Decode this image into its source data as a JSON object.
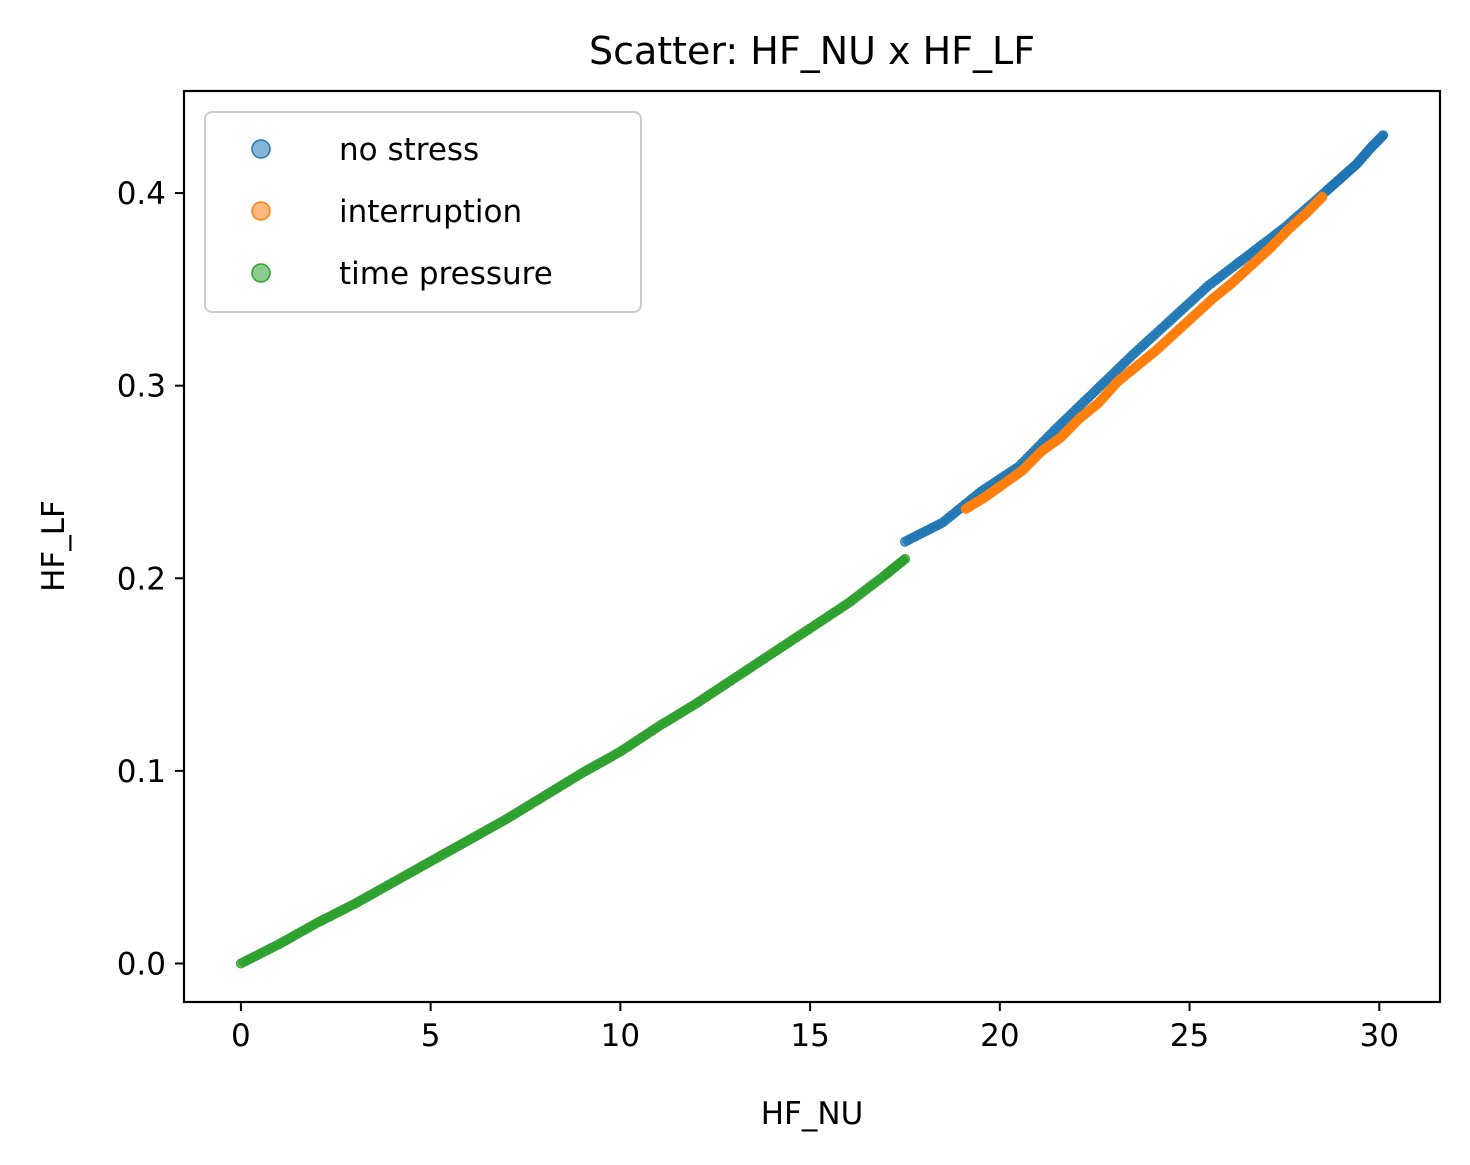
{
  "chart_data": {
    "type": "scatter",
    "title": "Scatter: HF_NU x HF_LF",
    "xlabel": "HF_NU",
    "ylabel": "HF_LF",
    "xlim": [
      -1.5,
      31.6
    ],
    "ylim": [
      -0.02,
      0.453
    ],
    "xticks": [
      0,
      5,
      10,
      15,
      20,
      25,
      30
    ],
    "xtick_labels": [
      "0",
      "5",
      "10",
      "15",
      "20",
      "25",
      "30"
    ],
    "yticks": [
      0.0,
      0.1,
      0.2,
      0.3,
      0.4
    ],
    "ytick_labels": [
      "0.0",
      "0.1",
      "0.2",
      "0.3",
      "0.4"
    ],
    "grid": false,
    "legend_position": "upper-left",
    "curve_relation": "approximately HF_LF = 0.01*HF_NU + 0.000145*HF_NU^2",
    "series": [
      {
        "name": "no stress",
        "color": "#1f77b4",
        "x_range": [
          17.5,
          30.1
        ],
        "points": [
          [
            17.5,
            0.219
          ],
          [
            18.5,
            0.229
          ],
          [
            19.5,
            0.245
          ],
          [
            20.5,
            0.258
          ],
          [
            21.5,
            0.278
          ],
          [
            22.5,
            0.297
          ],
          [
            23.5,
            0.316
          ],
          [
            24.5,
            0.334
          ],
          [
            25.5,
            0.352
          ],
          [
            26.5,
            0.367
          ],
          [
            27.5,
            0.382
          ],
          [
            28.6,
            0.401
          ],
          [
            29.0,
            0.408
          ],
          [
            29.4,
            0.415
          ],
          [
            29.8,
            0.424
          ],
          [
            30.1,
            0.43
          ]
        ]
      },
      {
        "name": "interruption",
        "color": "#ff7f0e",
        "x_range": [
          19.1,
          28.5
        ],
        "points": [
          [
            19.1,
            0.236
          ],
          [
            19.6,
            0.242
          ],
          [
            20.1,
            0.249
          ],
          [
            20.6,
            0.256
          ],
          [
            21.1,
            0.266
          ],
          [
            21.6,
            0.273
          ],
          [
            22.1,
            0.283
          ],
          [
            22.6,
            0.291
          ],
          [
            23.1,
            0.302
          ],
          [
            23.6,
            0.31
          ],
          [
            24.1,
            0.318
          ],
          [
            24.6,
            0.327
          ],
          [
            25.1,
            0.336
          ],
          [
            25.6,
            0.345
          ],
          [
            26.1,
            0.353
          ],
          [
            26.6,
            0.362
          ],
          [
            27.1,
            0.371
          ],
          [
            27.6,
            0.381
          ],
          [
            28.1,
            0.39
          ],
          [
            28.5,
            0.398
          ]
        ]
      },
      {
        "name": "time pressure",
        "color": "#2ca02c",
        "x_range": [
          0,
          17.5
        ],
        "points": [
          [
            0,
            0
          ],
          [
            1,
            0.01
          ],
          [
            2,
            0.021
          ],
          [
            3,
            0.031
          ],
          [
            4,
            0.042
          ],
          [
            5,
            0.053
          ],
          [
            6,
            0.064
          ],
          [
            7,
            0.075
          ],
          [
            8,
            0.087
          ],
          [
            9,
            0.099
          ],
          [
            10,
            0.11
          ],
          [
            11,
            0.123
          ],
          [
            12,
            0.135
          ],
          [
            13,
            0.148
          ],
          [
            14,
            0.161
          ],
          [
            15,
            0.174
          ],
          [
            16,
            0.187
          ],
          [
            17,
            0.202
          ],
          [
            17.5,
            0.21
          ]
        ]
      }
    ]
  }
}
